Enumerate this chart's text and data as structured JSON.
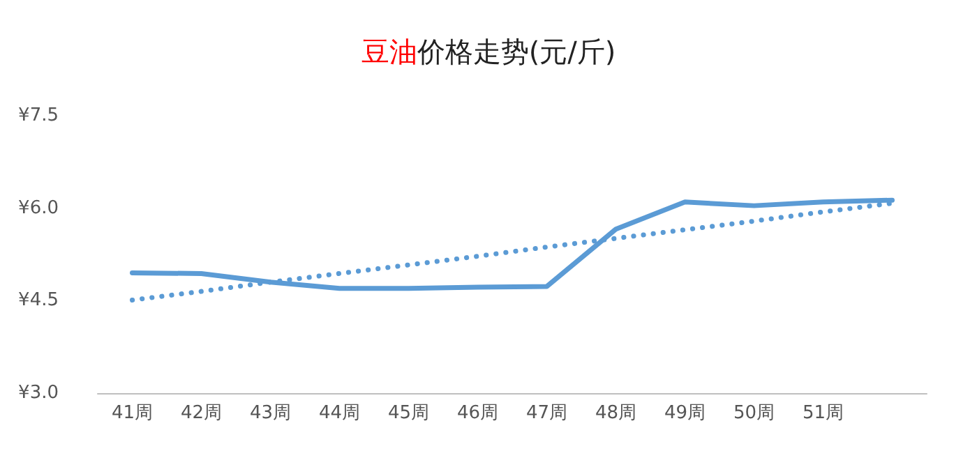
{
  "chart_data": {
    "type": "line",
    "title": "豆油价格走势(元/斤)",
    "categories": [
      "41周",
      "42周",
      "43周",
      "44周",
      "45周",
      "46周",
      "47周",
      "48周",
      "49周",
      "50周",
      "51周",
      null
    ],
    "series": [
      {
        "color": "#5b9bd5",
        "values": [
          4.95,
          4.94,
          4.8,
          4.7,
          4.7,
          4.72,
          4.73,
          5.66,
          6.1,
          6.04,
          6.1,
          6.13
        ],
        "line_style": "solid"
      },
      {
        "type": "line",
        "color": "#5b9bd5",
        "values": [
          4.51,
          4.65,
          4.8,
          4.94,
          5.08,
          5.22,
          5.37,
          5.51,
          5.65,
          5.79,
          5.94,
          6.08
        ],
        "line_style": "dotted"
      }
    ],
    "ylim": [
      3,
      7.5
    ],
    "yticks": [
      {
        "value": 3,
        "label": "¥3.0"
      },
      {
        "value": 4.5,
        "label": "¥4.5"
      },
      {
        "value": 6,
        "label": "¥6.0"
      },
      {
        "value": 7.5,
        "label": "¥7.5"
      }
    ],
    "grid": false,
    "marker": "none"
  }
}
